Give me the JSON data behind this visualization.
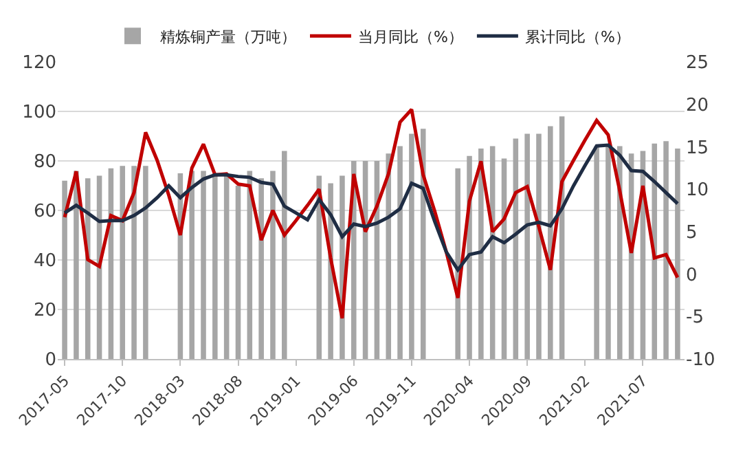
{
  "chart_data": {
    "type": "bar",
    "categories": [
      "2017-05",
      null,
      null,
      null,
      null,
      "2017-10",
      null,
      null,
      null,
      null,
      "2018-03",
      null,
      null,
      null,
      null,
      "2018-08",
      null,
      null,
      null,
      null,
      "2019-01",
      null,
      null,
      null,
      null,
      "2019-06",
      null,
      null,
      null,
      null,
      "2019-11",
      null,
      null,
      null,
      null,
      "2020-04",
      null,
      null,
      null,
      null,
      "2020-09",
      null,
      null,
      null,
      null,
      "2021-02",
      null,
      null,
      null,
      null,
      "2021-07",
      null,
      null,
      null
    ],
    "series": [
      {
        "name": "精炼铜产量（万吨）",
        "color": "#a6a6a6",
        "values": [
          72,
          76,
          73,
          74,
          77,
          78,
          78,
          78,
          null,
          null,
          75,
          76,
          76,
          75,
          74,
          70,
          76,
          73,
          76,
          84,
          null,
          null,
          74,
          71,
          74,
          80,
          80,
          80,
          83,
          86,
          91,
          93,
          null,
          null,
          77,
          82,
          85,
          86,
          81,
          89,
          91,
          91,
          94,
          98,
          null,
          null,
          86,
          86,
          86,
          83,
          84,
          87,
          88,
          85
        ]
      },
      {
        "name": "当月同比（%）",
        "type": "line",
        "axis": "y2",
        "color": "#c00000",
        "values": [
          6.7,
          12.1,
          1.7,
          0.9,
          6.9,
          6.3,
          9.6,
          16.7,
          13.4,
          9.3,
          4.6,
          12.5,
          15.3,
          11.7,
          11.8,
          10.6,
          10.4,
          4.0,
          7.5,
          4.6,
          6.3,
          8.1,
          10.0,
          1.9,
          -5.2,
          11.8,
          5.0,
          8.0,
          11.8,
          17.9,
          19.4,
          11.7,
          7.4,
          2.6,
          -2.8,
          8.6,
          13.3,
          5.0,
          6.5,
          9.6,
          10.3,
          5.6,
          0.5,
          10.9,
          13.4,
          15.8,
          18.1,
          16.4,
          9.8,
          2.5,
          10.4,
          1.9,
          2.3,
          -0.4
        ]
      },
      {
        "name": "累计同比（%）",
        "type": "line",
        "axis": "y2",
        "color": "#1f2d44",
        "values": [
          7.2,
          8.1,
          7.2,
          6.2,
          6.3,
          6.3,
          6.9,
          7.8,
          9.0,
          10.4,
          9.0,
          10.2,
          11.2,
          11.7,
          11.7,
          11.5,
          11.4,
          10.8,
          10.6,
          8.0,
          7.2,
          6.4,
          8.8,
          7.0,
          4.4,
          5.9,
          5.6,
          6.0,
          6.7,
          7.7,
          10.7,
          10.1,
          6.2,
          2.6,
          0.5,
          2.3,
          2.6,
          4.4,
          3.7,
          4.7,
          5.8,
          6.1,
          5.7,
          7.7,
          10.4,
          12.8,
          15.1,
          15.2,
          14.0,
          12.2,
          12.1,
          10.9,
          9.6,
          8.3
        ]
      }
    ],
    "ylim": [
      0,
      120
    ],
    "yticks": [
      0,
      20,
      40,
      60,
      80,
      100,
      120
    ],
    "y2lim": [
      -10,
      25
    ],
    "y2ticks": [
      -10,
      -5,
      0,
      5,
      10,
      15,
      20,
      25
    ],
    "grid": "y",
    "legend": "top",
    "marker": "none",
    "line_style": "solid"
  }
}
